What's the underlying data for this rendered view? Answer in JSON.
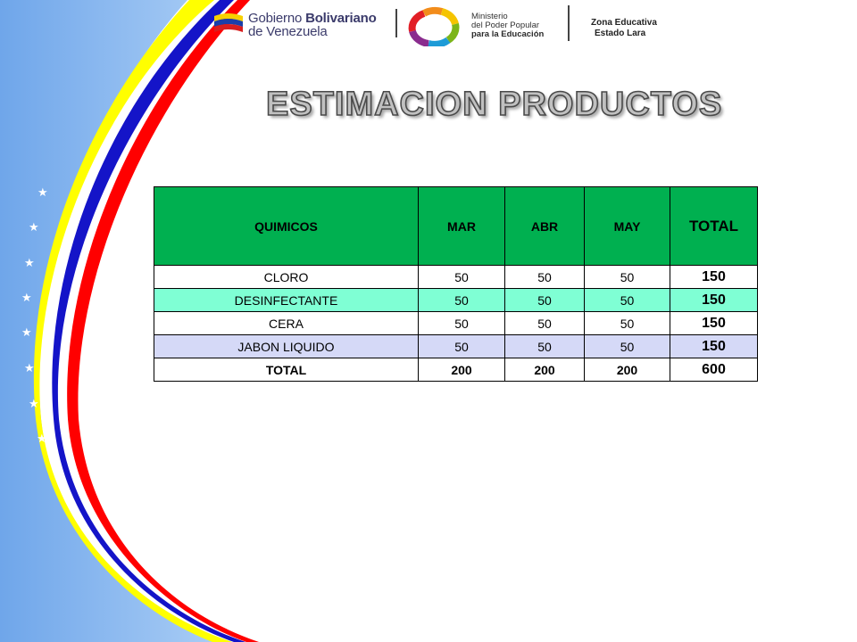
{
  "header": {
    "gobierno_line1_a": "Gobierno",
    "gobierno_line1_b": "Bolivariano",
    "gobierno_line2": "de Venezuela",
    "ministerio_line1": "Ministerio",
    "ministerio_line2": "del Poder Popular",
    "ministerio_line3": "para la Educación",
    "zona_line1": "Zona Educativa",
    "zona_line2": "Estado Lara"
  },
  "title": "ESTIMACION PRODUCTOS",
  "table": {
    "headers": [
      "QUIMICOS",
      "MAR",
      "ABR",
      "MAY",
      "TOTAL"
    ],
    "rows": [
      [
        "CLORO",
        "50",
        "50",
        "50",
        "150"
      ],
      [
        "DESINFECTANTE",
        "50",
        "50",
        "50",
        "150"
      ],
      [
        "CERA",
        "50",
        "50",
        "50",
        "150"
      ],
      [
        "JABON LIQUIDO",
        "50",
        "50",
        "50",
        "150"
      ]
    ],
    "total_row": [
      "TOTAL",
      "200",
      "200",
      "200",
      "600"
    ]
  },
  "colors": {
    "header_green": "#00b050",
    "row_cyan": "#7fffd4",
    "row_lavender": "#d5d9f7",
    "band_yellow": "#ffff00",
    "band_blue": "#1414c8",
    "band_red": "#ff0000",
    "background_blue": "#7fb4ee"
  },
  "decorations": {
    "stars_icon": "white-star-icon",
    "star_count": 8
  }
}
